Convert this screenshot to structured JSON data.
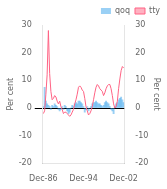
{
  "chart_data": {
    "type": "bar",
    "categories": [
      "Dec-86",
      null,
      null,
      null,
      null,
      null,
      null,
      null,
      null,
      null,
      null,
      null,
      null,
      null,
      null,
      null,
      null,
      null,
      null,
      null,
      null,
      null,
      null,
      null,
      null,
      null,
      null,
      null,
      null,
      null,
      null,
      null,
      "Dec-94",
      null,
      null,
      null,
      null,
      null,
      null,
      null,
      null,
      null,
      null,
      null,
      null,
      null,
      null,
      null,
      null,
      null,
      null,
      null,
      null,
      null,
      null,
      null,
      null,
      null,
      null,
      null,
      null,
      null,
      null,
      null,
      "Dec-02"
    ],
    "series": [
      {
        "name": "qoq",
        "type": "bar",
        "values": [
          0.5,
          7.5,
          2.5,
          1.5,
          1.0,
          0.5,
          -0.5,
          1.0,
          0.5,
          1.5,
          1.0,
          0.5,
          -0.5,
          -1.0,
          -0.5,
          0.5,
          -0.5,
          1.0,
          0.5,
          -1.0,
          -2.0,
          -1.5,
          0.0,
          1.0,
          0.5,
          1.5,
          2.0,
          1.5,
          2.5,
          2.5,
          2.0,
          1.5,
          0.5,
          -1.5,
          -0.5,
          0.5,
          -1.0,
          0.0,
          0.5,
          1.5,
          2.0,
          2.0,
          2.5,
          2.0,
          1.5,
          1.5,
          1.0,
          0.5,
          1.0,
          2.0,
          2.5,
          2.0,
          1.5,
          0.5,
          -0.5,
          -1.0,
          -2.0,
          0.5,
          1.5,
          2.0,
          3.0,
          3.5,
          4.0,
          3.0,
          2.0
        ]
      },
      {
        "name": "tty",
        "type": "line",
        "values": [
          -2.0,
          -1.0,
          5.0,
          12.0,
          28.0,
          12.5,
          6.0,
          3.0,
          3.5,
          4.5,
          4.0,
          2.5,
          1.5,
          2.5,
          0.5,
          -0.5,
          -2.0,
          -1.5,
          -1.5,
          -2.0,
          -2.5,
          -3.0,
          -2.5,
          -1.5,
          -0.5,
          1.5,
          3.0,
          5.0,
          7.5,
          8.0,
          7.5,
          6.5,
          6.0,
          3.5,
          0.5,
          -1.0,
          -2.5,
          -2.0,
          -1.0,
          0.5,
          3.0,
          5.5,
          7.5,
          8.5,
          8.0,
          7.0,
          6.5,
          6.0,
          4.5,
          5.5,
          7.0,
          8.0,
          8.5,
          8.5,
          7.0,
          4.5,
          1.5,
          0.0,
          0.5,
          2.5,
          7.0,
          10.5,
          13.5,
          15.0,
          14.5
        ]
      }
    ],
    "ylabel": "Per cent",
    "y2label": "Per cent",
    "ylim": [
      -20,
      30
    ],
    "yticks": [
      -20,
      -10,
      0,
      10,
      20,
      30
    ],
    "y2lim": [
      -20,
      30
    ],
    "y2ticks": [
      -20,
      -10,
      0,
      10,
      20,
      30
    ],
    "legend": "upper right",
    "grid": false
  }
}
